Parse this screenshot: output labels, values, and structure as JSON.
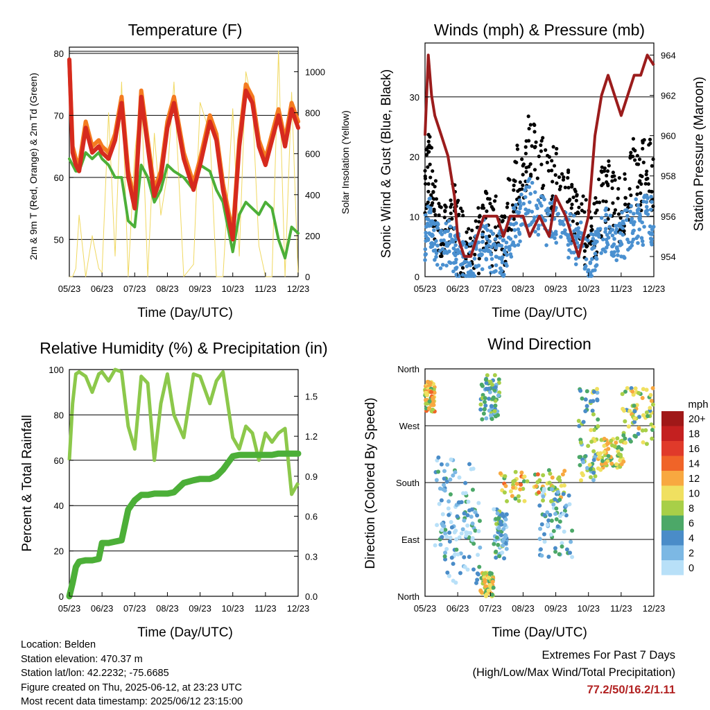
{
  "months": [
    "05/23",
    "06/23",
    "07/23",
    "08/23",
    "09/23",
    "10/23",
    "11/23",
    "12/23"
  ],
  "panels": {
    "temperature": {
      "title": "Temperature (F)",
      "xlabel": "Time (Day/UTC)",
      "ylabel_left": "2m & 9m T (Red, Orange) & 2m Td (Green)",
      "ylabel_right": "Solar Insolation (Yellow)"
    },
    "winds": {
      "title": "Winds (mph) & Pressure (mb)",
      "xlabel": "Time (Day/UTC)",
      "ylabel_left": "Sonic Wind & Gust (Blue, Black)",
      "ylabel_right": "Station Pressure (Maroon)"
    },
    "humidity": {
      "title": "Relative Humidity (%) & Precipitation (in)",
      "xlabel": "Time (Day/UTC)",
      "ylabel_left": "Percent & Total Rainfall"
    },
    "direction": {
      "title": "Wind Direction",
      "xlabel": "Time (Day/UTC)",
      "ylabel_left": "Direction (Colored By Speed)",
      "legend_title": "mph"
    }
  },
  "chart_data": [
    {
      "type": "line",
      "title": "Temperature (F)",
      "xlabel": "Time (Day/UTC)",
      "ylabel": "2m & 9m T (Red, Orange) & 2m Td (Green)",
      "y2label": "Solar Insolation (Yellow)",
      "xlim": [
        0,
        7
      ],
      "ylim": [
        44,
        81
      ],
      "y2lim": [
        0,
        1120
      ],
      "yticks": [
        50,
        60,
        70,
        80
      ],
      "y2ticks": [
        0,
        200,
        400,
        600,
        800,
        1000
      ],
      "grid": "horizontal",
      "x": [
        0,
        0.1,
        0.2,
        0.3,
        0.5,
        0.7,
        0.9,
        1.0,
        1.2,
        1.4,
        1.6,
        1.8,
        2.0,
        2.2,
        2.4,
        2.6,
        2.8,
        3.0,
        3.2,
        3.5,
        3.8,
        4.0,
        4.3,
        4.5,
        4.7,
        5.0,
        5.2,
        5.4,
        5.6,
        5.8,
        6.0,
        6.2,
        6.4,
        6.6,
        6.8,
        7.0
      ],
      "series": [
        {
          "color": "#d62a1e",
          "values": [
            79,
            64,
            62,
            61,
            68,
            64,
            65,
            64,
            63,
            66,
            72,
            60,
            55,
            73,
            65,
            57,
            60,
            68,
            72,
            63,
            58,
            62,
            69,
            66,
            58,
            50,
            65,
            74,
            72,
            65,
            62,
            66,
            70,
            65,
            71,
            68
          ]
        },
        {
          "color": "#f47b20",
          "values": [
            79,
            65,
            63,
            62,
            69,
            65,
            66,
            65,
            64,
            67,
            73,
            61,
            56,
            74,
            66,
            58,
            61,
            69,
            73,
            64,
            59,
            63,
            70,
            67,
            59,
            51,
            66,
            75,
            73,
            66,
            63,
            67,
            71,
            66,
            72,
            69
          ]
        },
        {
          "color": "#4caf38",
          "values": [
            63,
            62,
            61,
            61,
            64,
            63,
            64,
            63,
            62,
            60,
            60,
            53,
            52,
            62,
            60,
            56,
            58,
            62,
            61,
            60,
            58,
            62,
            61,
            58,
            56,
            48,
            54,
            56,
            55,
            54,
            56,
            55,
            50,
            47,
            52,
            51
          ]
        },
        {
          "color": "#f0d860",
          "axis": "right",
          "values": [
            0,
            0,
            40,
            300,
            0,
            200,
            40,
            20,
            800,
            100,
            950,
            0,
            600,
            900,
            0,
            700,
            300,
            500,
            950,
            0,
            60,
            850,
            700,
            0,
            0,
            820,
            100,
            1000,
            850,
            150,
            0,
            0,
            1100,
            0,
            900,
            0
          ]
        }
      ]
    },
    {
      "type": "scatter",
      "title": "Winds (mph) & Pressure (mb)",
      "xlabel": "Time (Day/UTC)",
      "ylabel": "Sonic Wind & Gust (Blue, Black)",
      "y2label": "Station Pressure (Maroon)",
      "xlim": [
        0,
        7
      ],
      "ylim": [
        0,
        39
      ],
      "y2lim": [
        953,
        964.6
      ],
      "yticks": [
        0,
        10,
        20,
        30
      ],
      "y2ticks": [
        954,
        956,
        958,
        960,
        962,
        964
      ],
      "grid": "horizontal",
      "x": [
        0,
        0.1,
        0.2,
        0.3,
        0.5,
        0.7,
        0.9,
        1.0,
        1.2,
        1.4,
        1.6,
        1.8,
        2.0,
        2.2,
        2.4,
        2.6,
        2.8,
        3.0,
        3.2,
        3.5,
        3.8,
        4.0,
        4.3,
        4.5,
        4.7,
        5.0,
        5.2,
        5.4,
        5.6,
        5.8,
        6.0,
        6.2,
        6.4,
        6.6,
        6.8,
        7.0
      ],
      "series": [
        {
          "color": "#000000",
          "values": [
            15,
            20,
            18,
            12,
            10,
            12,
            11,
            9,
            6,
            5,
            7,
            10,
            8,
            9,
            7,
            14,
            17,
            19,
            23,
            20,
            16,
            18,
            14,
            12,
            10,
            8,
            9,
            14,
            16,
            12,
            12,
            14,
            19,
            17,
            21,
            16
          ]
        },
        {
          "color": "#4a90d0",
          "values": [
            6,
            10,
            9,
            7,
            5,
            6,
            5,
            4,
            3,
            2,
            4,
            6,
            5,
            5,
            4,
            7,
            9,
            11,
            13,
            11,
            9,
            10,
            8,
            7,
            6,
            4,
            5,
            8,
            9,
            7,
            7,
            8,
            10,
            9,
            11,
            9
          ]
        },
        {
          "color": "#9b1c1c",
          "axis": "right",
          "values": [
            960,
            964,
            962,
            961,
            960,
            959,
            957,
            955,
            954,
            954,
            955,
            956,
            956,
            956,
            955,
            956,
            956,
            956,
            955,
            956,
            955,
            957,
            956,
            955,
            954,
            956,
            960,
            962,
            963,
            962,
            961,
            962,
            963,
            963,
            964,
            963.5
          ]
        }
      ]
    },
    {
      "type": "line",
      "title": "Relative Humidity (%) & Precipitation (in)",
      "xlabel": "Time (Day/UTC)",
      "ylabel": "Percent & Total Rainfall",
      "xlim": [
        0,
        7
      ],
      "ylim": [
        0,
        100
      ],
      "y2lim": [
        0,
        1.7
      ],
      "yticks": [
        0,
        20,
        40,
        60,
        80,
        100
      ],
      "y2ticks": [
        0.0,
        0.3,
        0.6,
        0.9,
        1.2,
        1.5
      ],
      "grid": "horizontal",
      "x": [
        0,
        0.1,
        0.2,
        0.3,
        0.5,
        0.7,
        0.9,
        1.0,
        1.2,
        1.4,
        1.6,
        1.8,
        2.0,
        2.2,
        2.4,
        2.6,
        2.8,
        3.0,
        3.2,
        3.5,
        3.8,
        4.0,
        4.3,
        4.5,
        4.7,
        5.0,
        5.2,
        5.4,
        5.6,
        5.8,
        6.0,
        6.2,
        6.4,
        6.6,
        6.8,
        7.0
      ],
      "series": [
        {
          "color": "#8cc84b",
          "values": [
            60,
            85,
            98,
            99,
            97,
            90,
            98,
            99,
            95,
            100,
            99,
            75,
            65,
            97,
            94,
            60,
            85,
            98,
            80,
            70,
            98,
            97,
            85,
            95,
            99,
            70,
            65,
            75,
            72,
            60,
            72,
            68,
            72,
            74,
            45,
            50
          ]
        },
        {
          "color": "#4caf38",
          "axis": "right",
          "values": [
            0,
            0.1,
            0.22,
            0.26,
            0.27,
            0.27,
            0.28,
            0.4,
            0.4,
            0.41,
            0.42,
            0.65,
            0.72,
            0.76,
            0.76,
            0.77,
            0.77,
            0.77,
            0.78,
            0.85,
            0.87,
            0.88,
            0.88,
            0.9,
            0.95,
            1.05,
            1.06,
            1.06,
            1.06,
            1.06,
            1.06,
            1.06,
            1.07,
            1.07,
            1.07,
            1.07
          ]
        }
      ]
    },
    {
      "type": "scatter",
      "title": "Wind Direction",
      "xlabel": "Time (Day/UTC)",
      "ylabel": "Direction (Colored By Speed)",
      "xlim": [
        0,
        7
      ],
      "ylim": [
        0,
        360
      ],
      "ytick_labels": [
        "North",
        "East",
        "South",
        "West",
        "North"
      ],
      "ytick_values": [
        0,
        90,
        180,
        270,
        360
      ],
      "grid": "horizontal",
      "legend": {
        "title": "mph",
        "labels": [
          "20+",
          "18",
          "16",
          "14",
          "12",
          "10",
          "8",
          "6",
          "4",
          "2",
          "0"
        ],
        "colors": [
          "#a01818",
          "#c42020",
          "#e03a2a",
          "#f06428",
          "#f8a840",
          "#f0e060",
          "#a8cf48",
          "#4ca868",
          "#4a8cc8",
          "#7cb8e4",
          "#b8e0f8"
        ]
      },
      "clusters": [
        {
          "x0": 0.0,
          "x1": 0.3,
          "y0": 290,
          "y1": 340,
          "speed": 10
        },
        {
          "x0": 0.3,
          "x1": 1.5,
          "y0": 80,
          "y1": 220,
          "speed": 3
        },
        {
          "x0": 0.5,
          "x1": 1.7,
          "y0": 20,
          "y1": 150,
          "speed": 2
        },
        {
          "x0": 1.7,
          "x1": 2.1,
          "y0": 0,
          "y1": 40,
          "speed": 9
        },
        {
          "x0": 2.1,
          "x1": 2.5,
          "y0": 60,
          "y1": 140,
          "speed": 4
        },
        {
          "x0": 2.3,
          "x1": 4.3,
          "y0": 150,
          "y1": 200,
          "speed": 10
        },
        {
          "x0": 1.7,
          "x1": 2.3,
          "y0": 280,
          "y1": 350,
          "speed": 5
        },
        {
          "x0": 3.5,
          "x1": 4.5,
          "y0": 60,
          "y1": 170,
          "speed": 3
        },
        {
          "x0": 4.7,
          "x1": 5.3,
          "y0": 180,
          "y1": 330,
          "speed": 6
        },
        {
          "x0": 5.3,
          "x1": 6.1,
          "y0": 200,
          "y1": 250,
          "speed": 9
        },
        {
          "x0": 6.0,
          "x1": 7.0,
          "y0": 240,
          "y1": 330,
          "speed": 8
        }
      ]
    }
  ],
  "info": {
    "location": "Location: Belden",
    "elevation": "Station elevation: 470.37 m",
    "latlon": "Station lat/lon: 42.2232; -75.6685",
    "created": "Figure created on Thu, 2025-06-12, at 23:23 UTC",
    "recent": "Most recent data timestamp: 2025/06/12 23:15:00"
  },
  "extremes": {
    "title": "Extremes For Past 7 Days",
    "subtitle": "(High/Low/Max Wind/Total Precipitation)",
    "values": "77.2/50/16.2/1.11"
  }
}
